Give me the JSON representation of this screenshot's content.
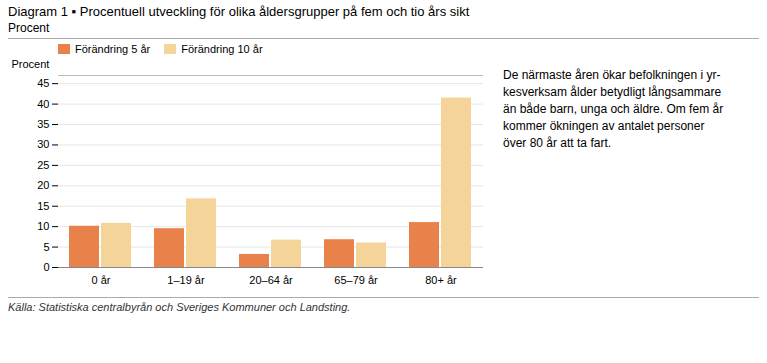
{
  "chart_data": {
    "type": "bar",
    "title": "Diagram 1 ▪ Procentuell utveckling för olika åldersgrupper på fem och tio års sikt",
    "subtitle": "Procent",
    "ylabel": "Procent",
    "categories": [
      "0 år",
      "1–19 år",
      "20–64 år",
      "65–79 år",
      "80+ år"
    ],
    "series": [
      {
        "name": "Förändring 5 år",
        "color": "#E8824A",
        "values": [
          10.1,
          9.5,
          3.2,
          6.8,
          11.0
        ]
      },
      {
        "name": "Förändring 10 år",
        "color": "#F5D49A",
        "values": [
          10.8,
          16.8,
          6.7,
          6.0,
          41.5
        ]
      }
    ],
    "ylim": [
      0,
      47
    ],
    "yticks": [
      0,
      5,
      10,
      15,
      20,
      25,
      30,
      35,
      40,
      45
    ],
    "grid": true,
    "legend": "upper left",
    "annotations": [
      "De närmaste åren ökar befolkningen i yr-",
      "kesverksam ålder betydligt långsammare",
      "än både barn, unga och äldre. Om fem år",
      "kommer ökningen av antalet personer",
      "över 80 år att ta fart."
    ],
    "caption": "Källa: Statistiska centralbyrån och Sveriges Kommuner och Landsting."
  }
}
